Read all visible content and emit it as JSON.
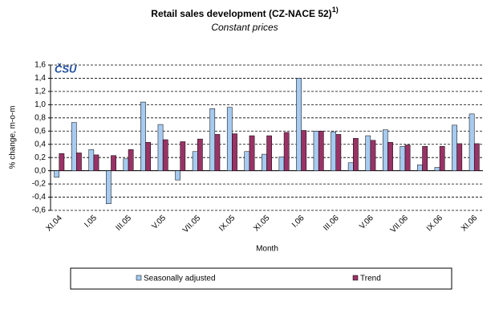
{
  "chart_data": {
    "type": "bar",
    "title": "Retail sales development (CZ-NACE 52)",
    "title_superscript": "1)",
    "subtitle": "Constant prices",
    "logo": "ČSÚ",
    "y_label": "% change, m-o-m",
    "x_label": "Month",
    "categories": [
      "XI.04",
      null,
      "I.05",
      null,
      "III.05",
      null,
      "V.05",
      null,
      "VII.05",
      null,
      "IX.05",
      null,
      "XI.05",
      null,
      "I.06",
      null,
      "III.06",
      null,
      "V.06",
      null,
      "VII.06",
      null,
      "IX.06",
      null,
      "XI.06"
    ],
    "series": [
      {
        "name": "Seasonally adjusted",
        "color": "#a6caf0",
        "values": [
          -0.1,
          0.73,
          0.32,
          -0.5,
          0.18,
          1.04,
          0.7,
          -0.14,
          0.29,
          0.94,
          0.96,
          0.29,
          0.25,
          0.21,
          1.4,
          0.6,
          0.59,
          0.12,
          0.53,
          0.62,
          0.37,
          0.09,
          0.05,
          0.69,
          0.86
        ]
      },
      {
        "name": "Trend",
        "color": "#993366",
        "values": [
          0.26,
          0.27,
          0.24,
          0.23,
          0.32,
          0.43,
          0.47,
          0.44,
          0.48,
          0.55,
          0.56,
          0.53,
          0.53,
          0.58,
          0.61,
          0.6,
          0.55,
          0.49,
          0.46,
          0.43,
          0.39,
          0.37,
          0.37,
          0.41,
          0.41
        ]
      }
    ],
    "ylim": [
      -0.6,
      1.6
    ],
    "yticks": [
      {
        "value": -0.6,
        "label": "-0,6"
      },
      {
        "value": -0.4,
        "label": "-0,4"
      },
      {
        "value": -0.2,
        "label": "-0,2"
      },
      {
        "value": 0,
        "label": "0,0"
      },
      {
        "value": 0.2,
        "label": "0,2"
      },
      {
        "value": 0.4,
        "label": "0,4"
      },
      {
        "value": 0.6,
        "label": "0,6"
      },
      {
        "value": 0.8,
        "label": "0,8"
      },
      {
        "value": 1.0,
        "label": "1,0"
      },
      {
        "value": 1.2,
        "label": "1,2"
      },
      {
        "value": 1.4,
        "label": "1,4"
      },
      {
        "value": 1.6,
        "label": "1,6"
      }
    ],
    "grid": true,
    "legend": "bottom"
  }
}
